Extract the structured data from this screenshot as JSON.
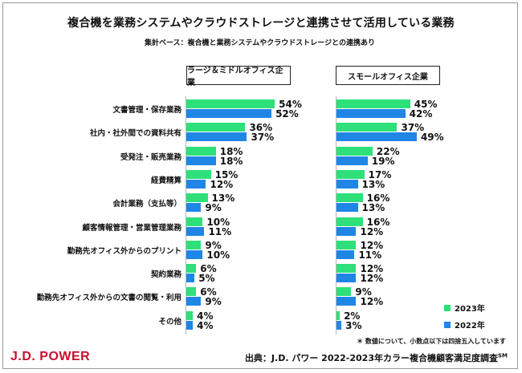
{
  "title": "複合機を業務システムやクラウドストレージと連携させて活用している業務",
  "subtitle": "集計ベース：複合機と業務システムやクラウドストレージとの連携あり",
  "note": "＊ 数値について、小数点以下は四捨五入しています",
  "logo": "J.D. POWER",
  "source": "出典：J.D. パワー 2022-2023年カラー複合機顧客満足度調査",
  "source_sup": "SM",
  "colors": {
    "s2023": "#2ee07a",
    "s2022": "#1f86e6"
  },
  "chart_data": {
    "type": "bar",
    "orientation": "horizontal",
    "categories": [
      "文書管理・保存業務",
      "社内・社外間での資料共有",
      "受発注・販売業務",
      "経費精算",
      "会計業務（支払等）",
      "顧客情報管理・営業管理業務",
      "勤務先オフィス外からのプリント",
      "契約業務",
      "勤務先オフィス外からの文書の閲覧・利用",
      "その他"
    ],
    "legend": {
      "position": "bottom-right",
      "items": [
        "2023年",
        "2022年"
      ]
    },
    "value_suffix": "%",
    "panels": [
      {
        "title": "ラージ＆ミドルオフィス企業",
        "series": [
          {
            "name": "2023年",
            "values": [
              54,
              36,
              18,
              15,
              13,
              10,
              9,
              6,
              6,
              4
            ]
          },
          {
            "name": "2022年",
            "values": [
              52,
              37,
              18,
              12,
              9,
              11,
              10,
              5,
              9,
              4
            ]
          }
        ]
      },
      {
        "title": "スモールオフィス企業",
        "series": [
          {
            "name": "2023年",
            "values": [
              45,
              37,
              22,
              17,
              16,
              16,
              12,
              12,
              9,
              2
            ]
          },
          {
            "name": "2022年",
            "values": [
              42,
              49,
              19,
              13,
              13,
              12,
              11,
              12,
              12,
              3
            ]
          }
        ]
      }
    ]
  }
}
